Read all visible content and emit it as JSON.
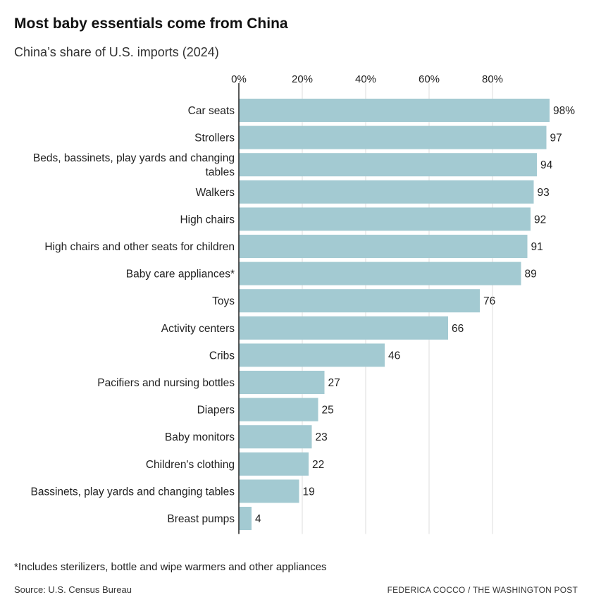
{
  "title": "Most baby essentials come from China",
  "subtitle": "China’s share of U.S. imports (2024)",
  "footnote": "*Includes sterilizers, bottle and wipe warmers and other appliances",
  "source": "Source: U.S. Census Bureau",
  "credit": "FEDERICA COCCO / THE WASHINGTON POST",
  "colors": {
    "bar": "#a3cad2",
    "grid": "#dddddd",
    "axis": "#222222",
    "text": "#222222"
  },
  "chart_data": {
    "type": "bar",
    "orientation": "horizontal",
    "title": "Most baby essentials come from China",
    "subtitle": "China’s share of U.S. imports (2024)",
    "xlim": [
      0,
      100
    ],
    "grid": true,
    "ticks": [
      0,
      20,
      40,
      60,
      80
    ],
    "tick_labels": [
      "0%",
      "20%",
      "40%",
      "60%",
      "80%"
    ],
    "categories": [
      [
        "Car seats"
      ],
      [
        "Strollers"
      ],
      [
        "Beds, bassinets, play yards and changing",
        "tables"
      ],
      [
        "Walkers"
      ],
      [
        "High chairs"
      ],
      [
        "High chairs and other seats for children"
      ],
      [
        "Baby care appliances*"
      ],
      [
        "Toys"
      ],
      [
        "Activity centers"
      ],
      [
        "Cribs"
      ],
      [
        "Pacifiers and nursing bottles"
      ],
      [
        "Diapers"
      ],
      [
        "Baby monitors"
      ],
      [
        "Children's clothing"
      ],
      [
        "Bassinets, play yards and changing tables"
      ],
      [
        "Breast pumps"
      ]
    ],
    "values": [
      98,
      97,
      94,
      93,
      92,
      91,
      89,
      76,
      66,
      46,
      27,
      25,
      23,
      22,
      19,
      4
    ],
    "value_labels": [
      "98%",
      "97",
      "94",
      "93",
      "92",
      "91",
      "89",
      "76",
      "66",
      "46",
      "27",
      "25",
      "23",
      "22",
      "19",
      "4"
    ]
  }
}
